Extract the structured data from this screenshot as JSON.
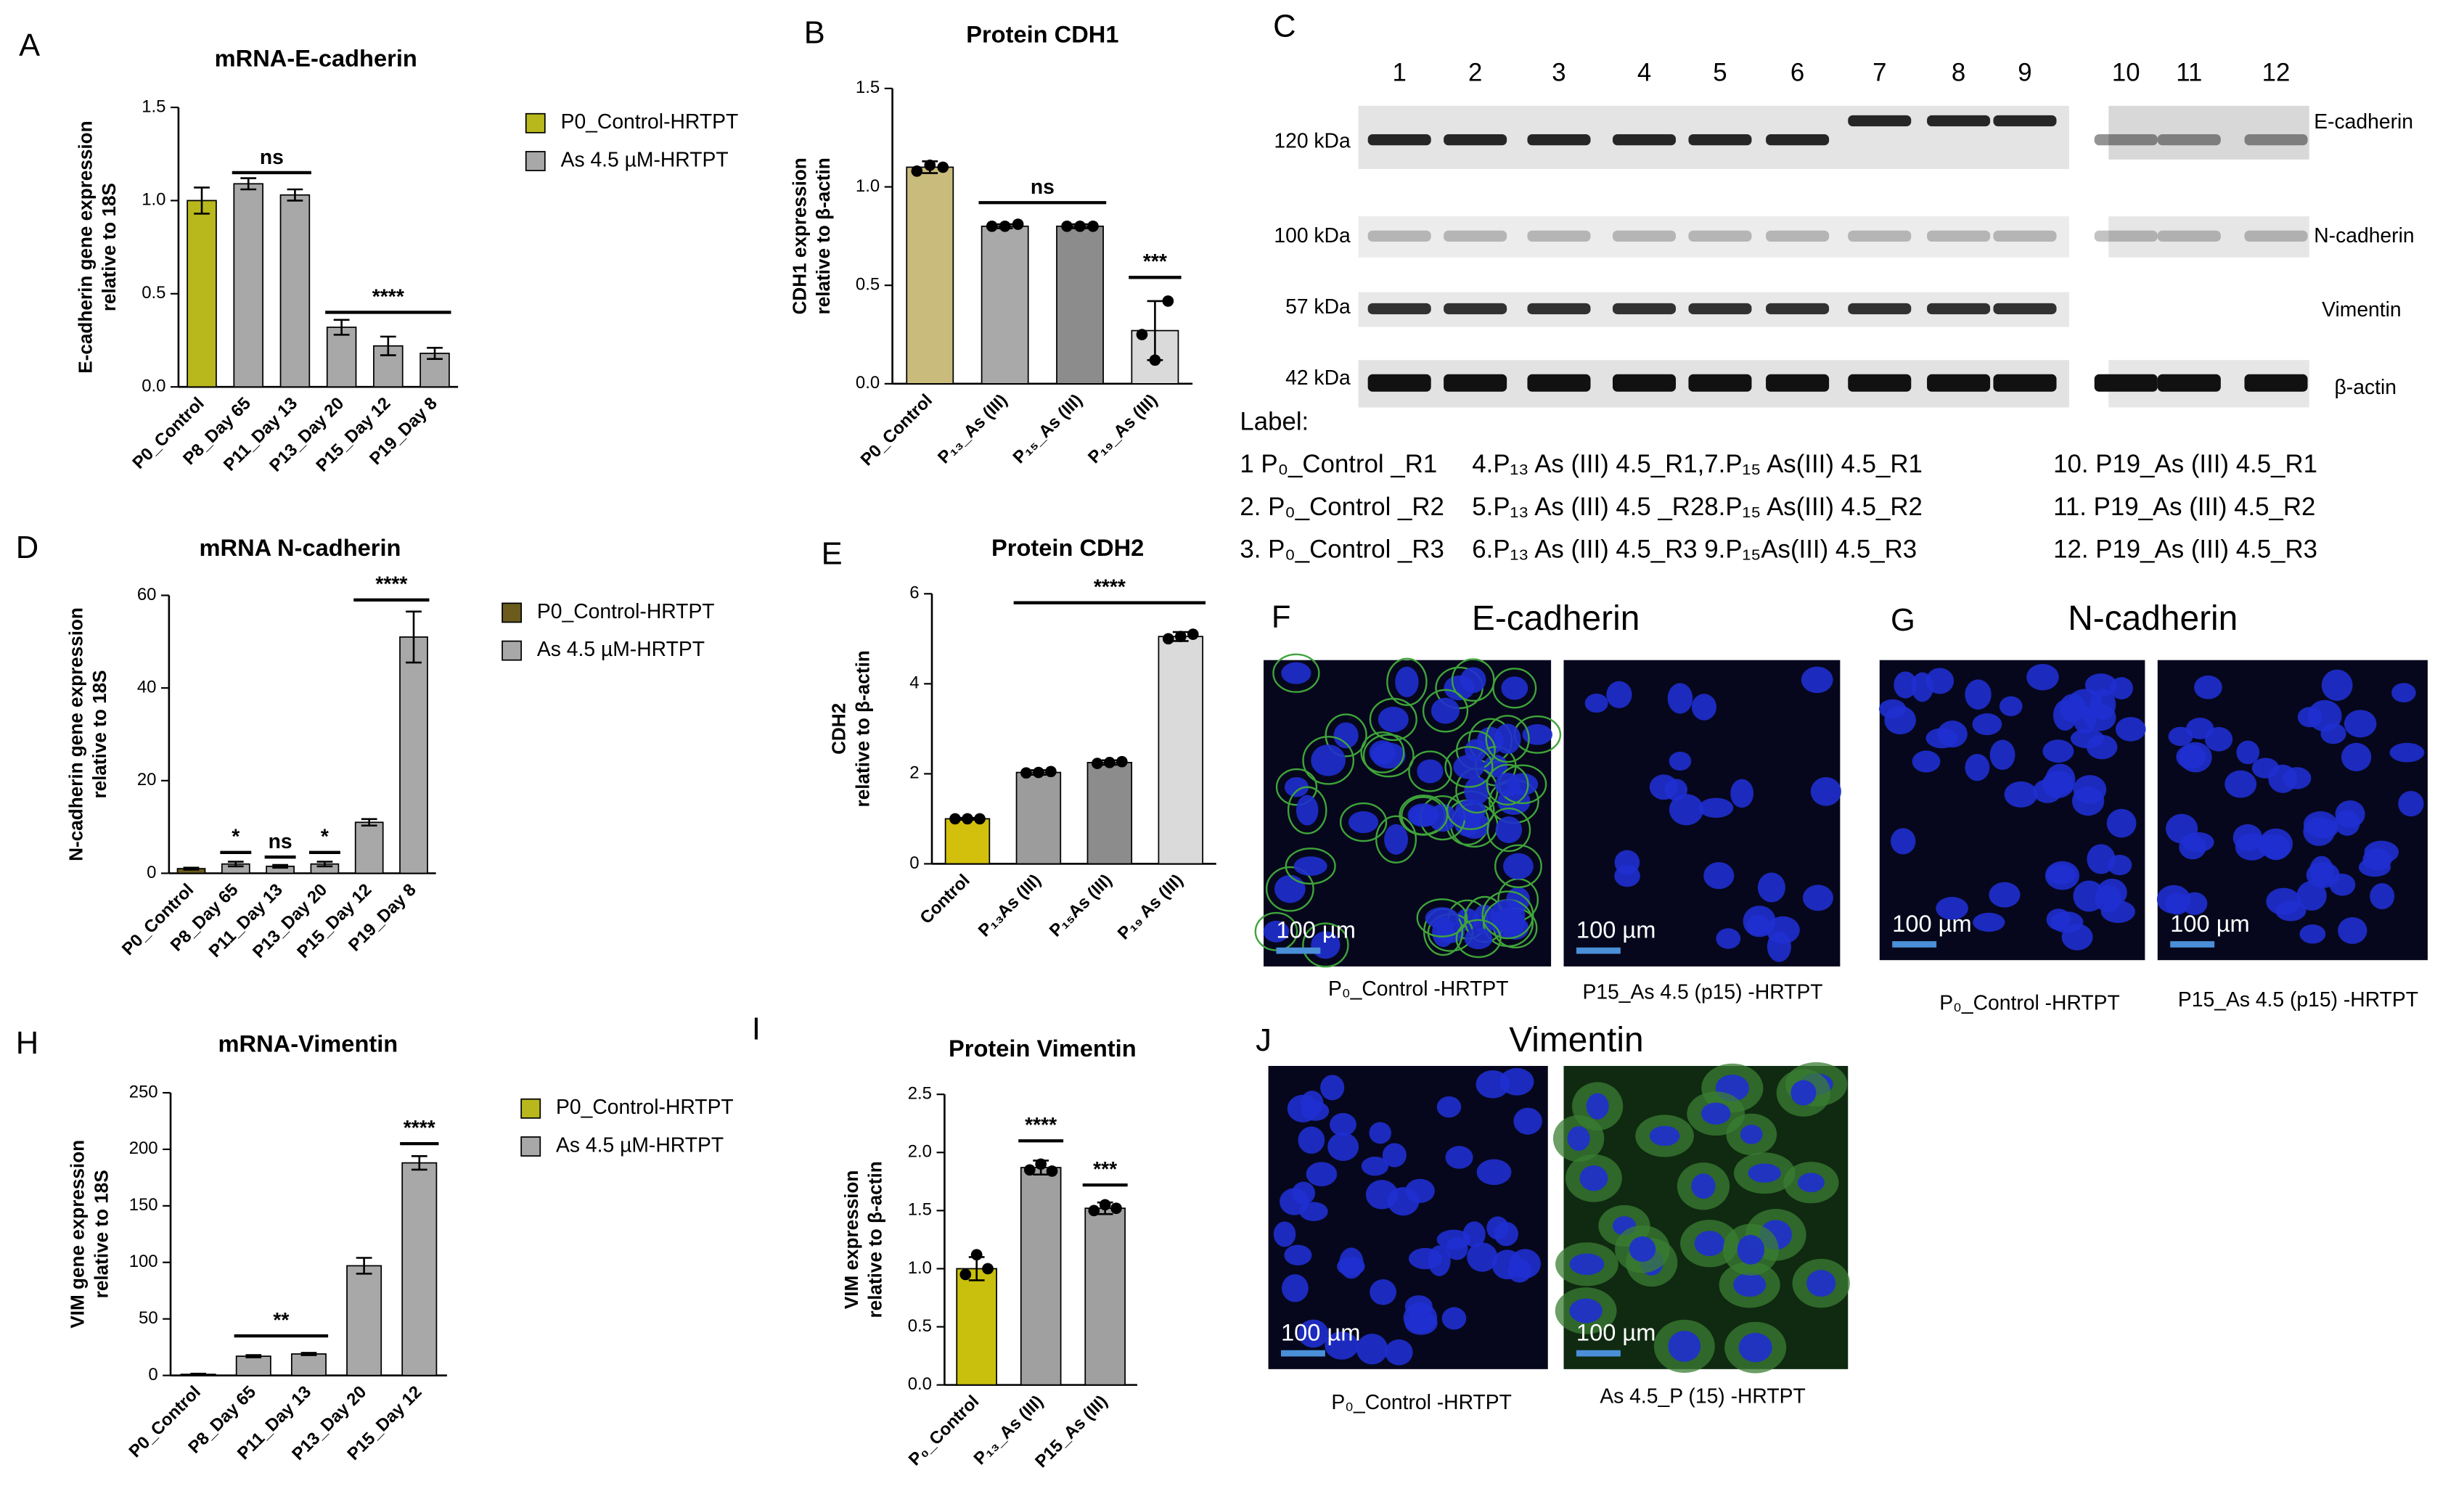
{
  "panel_labels": [
    "A",
    "B",
    "C",
    "D",
    "E",
    "F",
    "G",
    "H",
    "I",
    "J"
  ],
  "chart_data": [
    {
      "type": "bar",
      "title": "mRNA-E-cadherin",
      "ylabel": [
        "E-cadherin gene expression",
        "relative to 18S"
      ],
      "categories": [
        "P0_Control",
        "P8_Day 65",
        "P11_Day 13",
        "P13_Day 20",
        "P15_Day 12",
        "P19_Day 8"
      ],
      "series": [
        {
          "name": "P0_Control-HRTPT",
          "color": "#b8b81c",
          "values": [
            1.0,
            null,
            null,
            null,
            null,
            null
          ],
          "errors": [
            0.07,
            null,
            null,
            null,
            null,
            null
          ]
        },
        {
          "name": "As 4.5 µM-HRTPT",
          "color": "#a8a8a8",
          "values": [
            null,
            1.09,
            1.03,
            0.32,
            0.22,
            0.18
          ],
          "errors": [
            null,
            0.03,
            0.03,
            0.04,
            0.05,
            0.03
          ]
        }
      ],
      "ylim": [
        0,
        1.5
      ],
      "yticks": [
        {
          "value": 0,
          "label": "0.0"
        },
        0.5,
        {
          "value": 1,
          "label": "1.0"
        },
        1.5
      ],
      "annotations": [
        {
          "text": "ns",
          "from": 1,
          "to": 2,
          "y": 1.15
        },
        {
          "text": "****",
          "from": 3,
          "to": 5,
          "y": 0.4
        }
      ]
    },
    {
      "type": "bar",
      "title": "Protein CDH1",
      "ylabel": [
        "CDH1 expression",
        "relative to β-actin"
      ],
      "categories": [
        "P0_Control",
        "P₁₃_As (III)",
        "P₁₅_As (III)",
        "P₁₉_As (III)"
      ],
      "values": [
        1.1,
        0.8,
        0.8,
        0.27
      ],
      "errors": [
        0.03,
        0.01,
        0.01,
        0.15
      ],
      "colors": [
        "#c9bb7c",
        "#a9a9a9",
        "#8c8c8c",
        "#dadada"
      ],
      "points": [
        [
          1.08,
          1.11,
          1.1
        ],
        [
          0.8,
          0.8,
          0.81
        ],
        [
          0.8,
          0.8,
          0.8
        ],
        [
          0.25,
          0.12,
          0.42
        ]
      ],
      "ylim": [
        0,
        1.5
      ],
      "yticks": [
        {
          "value": 0,
          "label": "0.0"
        },
        0.5,
        {
          "value": 1,
          "label": "1.0"
        },
        1.5
      ],
      "annotations": [
        {
          "text": "ns",
          "from": 1,
          "to": 2,
          "y": 0.92
        },
        {
          "text": "***",
          "from": 3,
          "to": 3,
          "y": 0.54
        }
      ]
    },
    {
      "type": "bar",
      "title": "mRNA N-cadherin",
      "ylabel": [
        "N-cadherin gene expression",
        "relative to 18S"
      ],
      "categories": [
        "P0_Control",
        "P8_Day 65",
        "P11_Day 13",
        "P13_Day 20",
        "P15_Day 12",
        "P19_Day 8"
      ],
      "series": [
        {
          "name": "P0_Control-HRTPT",
          "color": "#6b5b1c",
          "values": [
            1,
            null,
            null,
            null,
            null,
            null
          ],
          "errors": [
            0.2,
            null,
            null,
            null,
            null,
            null
          ]
        },
        {
          "name": "As 4.5 µM-HRTPT",
          "color": "#a8a8a8",
          "values": [
            null,
            2,
            1.5,
            2,
            11,
            51
          ],
          "errors": [
            null,
            0.5,
            0.3,
            0.5,
            0.7,
            5.5
          ]
        }
      ],
      "ylim": [
        0,
        60
      ],
      "yticks": [
        0,
        20,
        40,
        60
      ],
      "annotations": [
        {
          "text": "*",
          "from": 1,
          "to": 1,
          "y": 4.5
        },
        {
          "text": "ns",
          "from": 2,
          "to": 2,
          "y": 3.5
        },
        {
          "text": "*",
          "from": 3,
          "to": 3,
          "y": 4.5
        },
        {
          "text": "****",
          "from": 4,
          "to": 5,
          "y": 59
        }
      ]
    },
    {
      "type": "bar",
      "title": "Protein CDH2",
      "ylabel": [
        "CDH2",
        "relative to β-actin"
      ],
      "categories": [
        "Control",
        "P₁₃As (III)",
        "P₁₅As (III)",
        "P₁₉ As (III)"
      ],
      "values": [
        1.0,
        2.03,
        2.25,
        5.05
      ],
      "errors": [
        0.02,
        0.05,
        0.05,
        0.1
      ],
      "colors": [
        "#d2c00c",
        "#9c9c9c",
        "#8c8c8c",
        "#dadada"
      ],
      "points": [
        [
          1,
          1,
          1
        ],
        [
          2.02,
          2.03,
          2.05
        ],
        [
          2.23,
          2.25,
          2.27
        ],
        [
          5.0,
          5.05,
          5.1
        ]
      ],
      "ylim": [
        0,
        6
      ],
      "yticks": [
        0,
        2,
        4,
        6
      ],
      "annotations": [
        {
          "text": "****",
          "from": 1,
          "to": 3,
          "y": 5.8
        }
      ]
    },
    {
      "type": "bar",
      "title": "mRNA-Vimentin",
      "ylabel": [
        "VIM gene expression",
        "relative to 18S"
      ],
      "categories": [
        "P0_Control",
        "P8_Day 65",
        "P11_Day 13",
        "P13_Day 20",
        "P15_Day 12"
      ],
      "series": [
        {
          "name": "P0_Control-HRTPT",
          "color": "#b8b81c",
          "values": [
            1,
            null,
            null,
            null,
            null
          ],
          "errors": [
            0.5,
            null,
            null,
            null,
            null
          ]
        },
        {
          "name": "As 4.5 µM-HRTPT",
          "color": "#a8a8a8",
          "values": [
            null,
            17,
            19,
            97,
            188
          ],
          "errors": [
            null,
            1,
            1,
            7,
            6
          ]
        }
      ],
      "ylim": [
        0,
        250
      ],
      "yticks": [
        0,
        50,
        100,
        150,
        200,
        250
      ],
      "annotations": [
        {
          "text": "**",
          "from": 1,
          "to": 2,
          "y": 35
        },
        {
          "text": "****",
          "from": 4,
          "to": 4,
          "y": 205
        }
      ]
    },
    {
      "type": "bar",
      "title": "Protein Vimentin",
      "ylabel": [
        "VIM expression",
        "relative to β-actin"
      ],
      "categories": [
        "P₀_Control",
        "P₁₃_As (III)",
        "P15_As (III)"
      ],
      "values": [
        1.0,
        1.87,
        1.52
      ],
      "errors": [
        0.1,
        0.06,
        0.05
      ],
      "colors": [
        "#c8c00c",
        "#a0a0a0",
        "#a0a0a0"
      ],
      "points": [
        [
          0.95,
          1.12,
          1.0
        ],
        [
          1.85,
          1.9,
          1.84
        ],
        [
          1.5,
          1.55,
          1.52
        ]
      ],
      "ylim": [
        0,
        2.5
      ],
      "yticks": [
        {
          "value": 0,
          "label": "0.0"
        },
        0.5,
        {
          "value": 1,
          "label": "1.0"
        },
        1.5,
        {
          "value": 2,
          "label": "2.0"
        },
        2.5
      ],
      "annotations": [
        {
          "text": "****",
          "from": 1,
          "to": 1,
          "y": 2.1
        },
        {
          "text": "***",
          "from": 2,
          "to": 2,
          "y": 1.72
        }
      ]
    }
  ],
  "blot": {
    "lanes": [
      1,
      2,
      3,
      4,
      5,
      6,
      7,
      8,
      9,
      10,
      11,
      12
    ],
    "markers": [
      "120 kDa",
      "100 kDa",
      "57 kDa",
      "42 kDa"
    ],
    "proteins": [
      "E-cadherin",
      "N-cadherin",
      "Vimentin",
      "β-actin"
    ],
    "legend_title": "Label:",
    "legend_rows": [
      [
        "1 P₀_Control _R1",
        "4.P₁₃ As (III) 4.5_R1,7.P₁₅ As(III) 4.5_R1",
        "10. P19_As (III) 4.5_R1"
      ],
      [
        "2. P₀_Control _R2",
        "5.P₁₃ As (III) 4.5 _R28.P₁₅ As(III) 4.5_R2",
        "11. P19_As (III) 4.5_R2"
      ],
      [
        "3. P₀_Control _R3",
        "6.P₁₃ As (III) 4.5_R3 9.P₁₅As(III) 4.5_R3",
        "12. P19_As (III) 4.5_R3"
      ]
    ]
  },
  "microscopy": {
    "titles": [
      "E-cadherin",
      "N-cadherin",
      "Vimentin"
    ],
    "scale_bar": "100 µm",
    "captions": [
      "P₀_Control -HRTPT",
      "P15_As 4.5 (p15) -HRTPT",
      "P₀_Control -HRTPT",
      "P15_As 4.5 (p15) -HRTPT",
      "P₀_Control -HRTPT",
      "As 4.5_P (15) -HRTPT"
    ]
  }
}
